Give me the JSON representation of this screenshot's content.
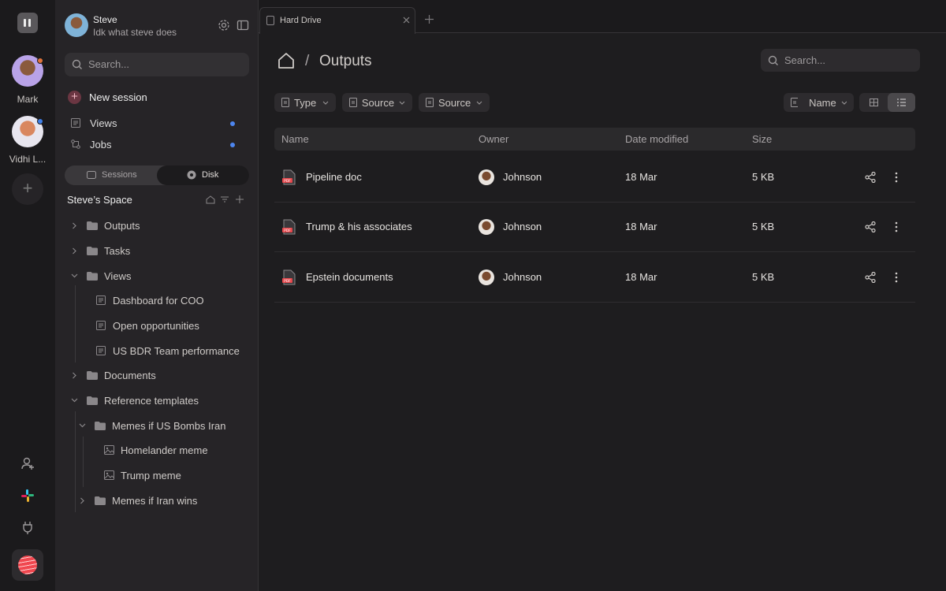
{
  "rail": {
    "users": [
      {
        "name": "Mark"
      },
      {
        "name": "Vidhi L..."
      }
    ]
  },
  "sidebar": {
    "user": {
      "name": "Steve",
      "subtitle": "Idk what steve does"
    },
    "search_placeholder": "Search...",
    "new_session": "New session",
    "nav": [
      "Views",
      "Jobs"
    ],
    "tabs": [
      "Sessions",
      "Disk"
    ],
    "space_title": "Steve’s Space",
    "tree": [
      "Outputs",
      "Tasks",
      "Views",
      "Dashboard for COO",
      "Open opportunities",
      "US BDR Team performance",
      "Documents",
      "Reference templates",
      "Memes if US Bombs Iran",
      "Homelander meme",
      "Trump meme",
      "Memes if Iran wins"
    ]
  },
  "tab": {
    "title": "Hard Drive"
  },
  "main": {
    "breadcrumb": "Outputs",
    "search_placeholder": "Search...",
    "filters": [
      "Type",
      "Source",
      "Source"
    ],
    "sort": "Name",
    "table": {
      "columns": [
        "Name",
        "Owner",
        "Date modified",
        "Size"
      ],
      "rows": [
        [
          "Pipeline doc",
          "Johnson",
          "18 Mar",
          "5 KB"
        ],
        [
          "Trump & his associates",
          "Johnson",
          "18 Mar",
          "5 KB"
        ],
        [
          "Epstein documents",
          "Johnson",
          "18 Mar",
          "5 KB"
        ]
      ]
    }
  }
}
